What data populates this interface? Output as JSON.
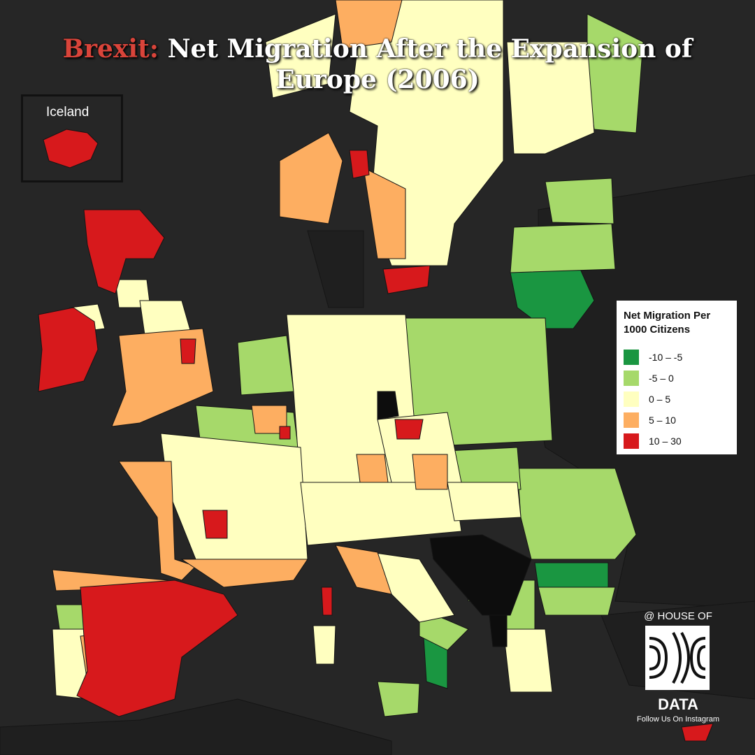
{
  "title": {
    "prefix": "Brexit:",
    "line1": "Net Migration After the Expansion of",
    "line2": "Europe (2006)",
    "accent_color": "#d9443a"
  },
  "inset": {
    "label": "Iceland"
  },
  "legend": {
    "title_line1": "Net Migration Per",
    "title_line2": "1000 Citizens",
    "items": [
      {
        "label": "-10 – -5",
        "color": "#1a9641"
      },
      {
        "label": "-5 – 0",
        "color": "#a6d96a"
      },
      {
        "label": "0 – 5",
        "color": "#ffffc0"
      },
      {
        "label": "5 – 10",
        "color": "#fdae61"
      },
      {
        "label": "10 – 30",
        "color": "#d7191c"
      }
    ]
  },
  "no_data_color": "#0d0d0d",
  "sea_color": "#262626",
  "branding": {
    "top": "@ HOUSE OF",
    "bottom": "DATA",
    "sub": "Follow Us On Instagram"
  }
}
